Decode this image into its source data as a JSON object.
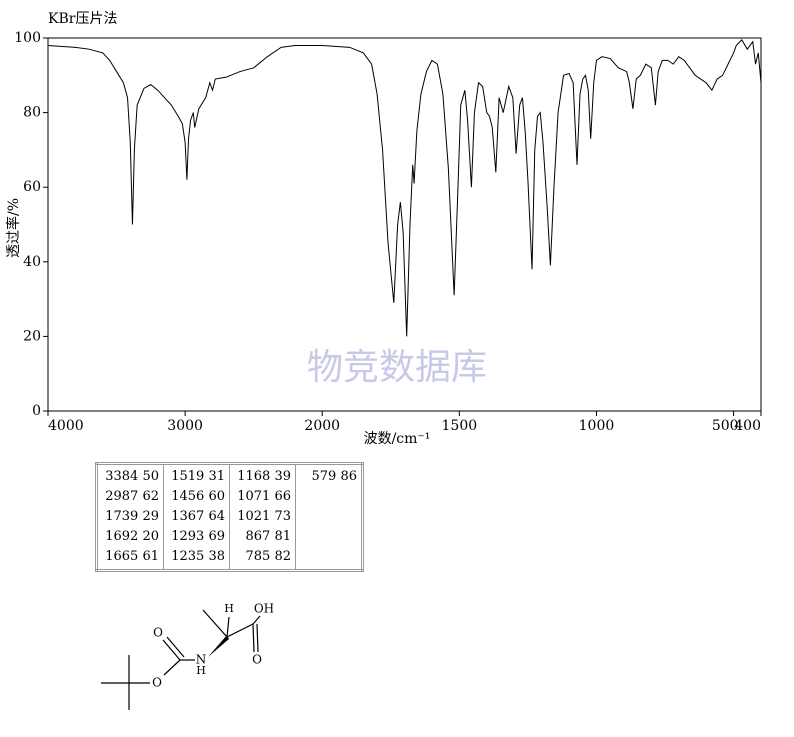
{
  "chart_data": {
    "type": "line",
    "title": "KBr压片法",
    "x_label": "波数/cm⁻¹",
    "y_label": "透过率/%",
    "annotation": "物竞数据库",
    "color": "#000000",
    "xlim": [
      4000,
      400
    ],
    "x_scale_change": 2000,
    "x_scale_ratio": 2,
    "xticks": [
      4000,
      3000,
      2000,
      1500,
      1000,
      500,
      400
    ],
    "ylim": [
      0,
      100
    ],
    "yticks": [
      0,
      20,
      40,
      60,
      80,
      100
    ],
    "x": [
      4000,
      3800,
      3700,
      3600,
      3550,
      3500,
      3450,
      3420,
      3400,
      3384,
      3370,
      3350,
      3300,
      3250,
      3200,
      3150,
      3100,
      3050,
      3020,
      3000,
      2987,
      2975,
      2960,
      2940,
      2930,
      2900,
      2850,
      2820,
      2800,
      2780,
      2700,
      2600,
      2500,
      2400,
      2300,
      2200,
      2100,
      2000,
      1900,
      1850,
      1820,
      1800,
      1780,
      1760,
      1739,
      1725,
      1715,
      1705,
      1692,
      1680,
      1670,
      1665,
      1655,
      1640,
      1620,
      1600,
      1580,
      1560,
      1540,
      1519,
      1505,
      1495,
      1480,
      1470,
      1456,
      1445,
      1430,
      1415,
      1400,
      1390,
      1380,
      1367,
      1355,
      1340,
      1320,
      1305,
      1293,
      1280,
      1270,
      1260,
      1250,
      1235,
      1225,
      1215,
      1205,
      1195,
      1180,
      1168,
      1155,
      1140,
      1120,
      1100,
      1085,
      1071,
      1060,
      1050,
      1040,
      1030,
      1021,
      1010,
      1000,
      980,
      950,
      920,
      890,
      880,
      867,
      855,
      840,
      820,
      800,
      785,
      775,
      760,
      740,
      720,
      700,
      680,
      660,
      640,
      620,
      600,
      579,
      560,
      540,
      520,
      500,
      490,
      470,
      450,
      430,
      420,
      410,
      400
    ],
    "values": [
      98,
      97.5,
      97,
      96,
      94,
      91,
      88,
      84,
      72,
      50,
      70,
      82,
      86.5,
      87.5,
      86,
      84,
      82,
      79,
      77,
      72,
      62,
      73,
      78,
      80,
      76,
      81,
      84,
      88,
      86,
      89,
      89.5,
      91,
      92,
      95,
      97.5,
      98,
      98,
      98,
      97.5,
      96,
      93,
      85,
      70,
      45,
      29,
      50,
      56,
      48,
      20,
      50,
      66,
      61,
      75,
      85,
      91,
      94,
      93,
      85,
      65,
      31,
      60,
      82,
      86,
      78,
      60,
      80,
      88,
      87,
      80,
      79,
      76,
      64,
      84,
      80,
      87,
      84,
      69,
      82,
      84,
      75,
      62,
      38,
      70,
      79,
      80,
      72,
      55,
      39,
      60,
      80,
      90,
      90.5,
      88,
      66,
      85,
      89,
      90,
      86,
      73,
      88,
      94,
      95,
      94.5,
      92,
      91,
      88,
      81,
      89,
      90,
      93,
      92,
      82,
      91,
      94,
      94,
      93,
      95,
      94,
      92,
      90,
      89,
      88,
      86,
      89,
      90,
      93,
      96,
      98,
      99.5,
      97,
      99,
      93,
      96,
      88
    ]
  },
  "table": {
    "columns": [
      [
        "3384 50",
        "2987 62",
        "1739 29",
        "1692 20",
        "1665 61"
      ],
      [
        "1519 31",
        "1456 60",
        "1367 64",
        "1293 69",
        "1235 38"
      ],
      [
        "1168 39",
        "1071 66",
        "1021 73",
        "867 81",
        "785 82"
      ],
      [
        "579 86"
      ]
    ]
  },
  "structure": {
    "atoms": [
      "O",
      "O",
      "N",
      "H",
      "H",
      "OH",
      "O"
    ]
  }
}
